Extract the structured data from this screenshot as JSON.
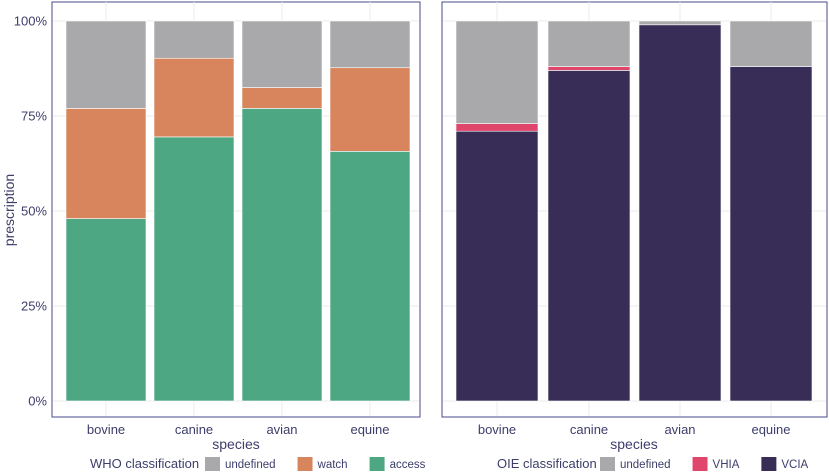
{
  "chart_data": [
    {
      "type": "bar",
      "stacked": true,
      "title": "",
      "xlabel": "species",
      "ylabel": "prescription",
      "ylim": [
        0,
        1
      ],
      "y_ticks": [
        "0%",
        "25%",
        "50%",
        "75%",
        "100%"
      ],
      "y_tick_values": [
        0,
        0.25,
        0.5,
        0.75,
        1.0
      ],
      "categories": [
        "bovine",
        "canine",
        "avian",
        "equine"
      ],
      "legend_title": "WHO classification",
      "legend_position": "bottom",
      "series": [
        {
          "name": "access",
          "color": "#4ea783",
          "values": [
            0.48,
            0.695,
            0.77,
            0.657
          ]
        },
        {
          "name": "watch",
          "color": "#d8855d",
          "values": [
            0.29,
            0.207,
            0.055,
            0.22
          ]
        },
        {
          "name": "undefined",
          "color": "#a9a9ac",
          "values": [
            0.23,
            0.098,
            0.175,
            0.123
          ]
        }
      ],
      "legend_order": [
        "undefined",
        "watch",
        "access"
      ]
    },
    {
      "type": "bar",
      "stacked": true,
      "title": "",
      "xlabel": "species",
      "ylabel": "",
      "ylim": [
        0,
        1
      ],
      "categories": [
        "bovine",
        "canine",
        "avian",
        "equine"
      ],
      "legend_title": "OIE classification",
      "legend_position": "bottom",
      "series": [
        {
          "name": "VCIA",
          "color": "#372d56",
          "values": [
            0.71,
            0.87,
            0.99,
            0.88
          ]
        },
        {
          "name": "VHIA",
          "color": "#e0466c",
          "values": [
            0.02,
            0.01,
            0.0,
            0.0
          ]
        },
        {
          "name": "undefined",
          "color": "#a9a9ac",
          "values": [
            0.27,
            0.12,
            0.01,
            0.12
          ]
        }
      ],
      "legend_order": [
        "undefined",
        "VHIA",
        "VCIA"
      ]
    }
  ]
}
